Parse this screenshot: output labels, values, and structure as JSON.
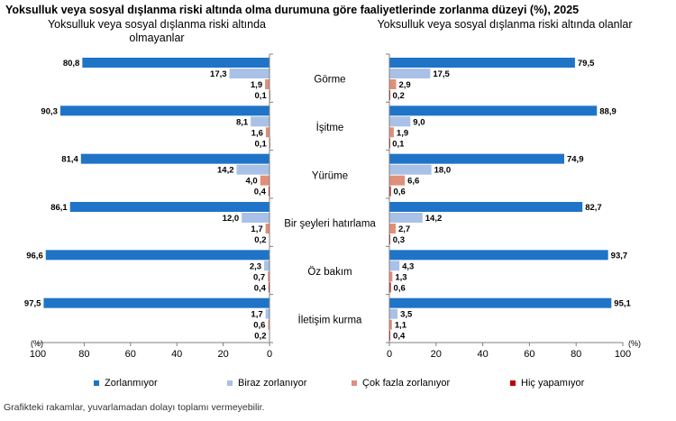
{
  "chart_data": {
    "type": "bar",
    "orientation": "horizontal",
    "title": "Yoksulluk veya sosyal dışlanma riski altında olma durumuna göre faaliyetlerinde zorlanma düzeyi (%), 2025",
    "categories": [
      "Görme",
      "İşitme",
      "Yürüme",
      "Bir şeyleri hatırlama",
      "Öz bakım",
      "İletişim kurma"
    ],
    "panels": [
      {
        "subtitle": "Yoksulluk veya sosyal dışlanma riski altında olmayanlar",
        "direction": "reversed",
        "xlim": [
          0,
          100
        ],
        "xticks": [
          "100",
          "80",
          "60",
          "40",
          "20",
          "0"
        ],
        "unit": "(%)",
        "series": [
          {
            "name": "Zorlanmıyor",
            "values": [
              80.8,
              90.3,
              81.4,
              86.1,
              96.6,
              97.5
            ],
            "labels": [
              "80,8",
              "90,3",
              "81,4",
              "86,1",
              "96,6",
              "97,5"
            ]
          },
          {
            "name": "Biraz zorlanıyor",
            "values": [
              17.3,
              8.1,
              14.2,
              12.0,
              2.3,
              1.7
            ],
            "labels": [
              "17,3",
              "8,1",
              "14,2",
              "12,0",
              "2,3",
              "1,7"
            ]
          },
          {
            "name": "Çok fazla zorlanıyor",
            "values": [
              1.9,
              1.6,
              4.0,
              1.7,
              0.7,
              0.6
            ],
            "labels": [
              "1,9",
              "1,6",
              "4,0",
              "1,7",
              "0,7",
              "0,6"
            ]
          },
          {
            "name": "Hiç yapamıyor",
            "values": [
              0.1,
              0.1,
              0.4,
              0.2,
              0.4,
              0.2
            ],
            "labels": [
              "0,1",
              "0,1",
              "0,4",
              "0,2",
              "0,4",
              "0,2"
            ]
          }
        ]
      },
      {
        "subtitle": "Yoksulluk veya sosyal dışlanma riski altında olanlar",
        "direction": "normal",
        "xlim": [
          0,
          100
        ],
        "xticks": [
          "0",
          "20",
          "40",
          "60",
          "80",
          "100"
        ],
        "unit": "(%)",
        "series": [
          {
            "name": "Zorlanmıyor",
            "values": [
              79.5,
              88.9,
              74.9,
              82.7,
              93.7,
              95.1
            ],
            "labels": [
              "79,5",
              "88,9",
              "74,9",
              "82,7",
              "93,7",
              "95,1"
            ]
          },
          {
            "name": "Biraz zorlanıyor",
            "values": [
              17.5,
              9.0,
              18.0,
              14.2,
              4.3,
              3.5
            ],
            "labels": [
              "17,5",
              "9,0",
              "18,0",
              "14,2",
              "4,3",
              "3,5"
            ]
          },
          {
            "name": "Çok fazla zorlanıyor",
            "values": [
              2.9,
              1.9,
              6.6,
              2.7,
              1.3,
              1.1
            ],
            "labels": [
              "2,9",
              "1,9",
              "6,6",
              "2,7",
              "1,3",
              "1,1"
            ]
          },
          {
            "name": "Hiç yapamıyor",
            "values": [
              0.2,
              0.1,
              0.6,
              0.3,
              0.6,
              0.4
            ],
            "labels": [
              "0,2",
              "0,1",
              "0,6",
              "0,3",
              "0,6",
              "0,4"
            ]
          }
        ]
      }
    ],
    "legend": [
      {
        "name": "Zorlanmıyor",
        "color": "#1f74c8"
      },
      {
        "name": "Biraz zorlanıyor",
        "color": "#a9c1e6"
      },
      {
        "name": "Çok fazla zorlanıyor",
        "color": "#e0907a"
      },
      {
        "name": "Hiç yapamıyor",
        "color": "#c00000"
      }
    ],
    "legend_position": "bottom",
    "grid": false
  },
  "note": "Grafikteki rakamlar, yuvarlamadan dolayı toplamı vermeyebilir."
}
